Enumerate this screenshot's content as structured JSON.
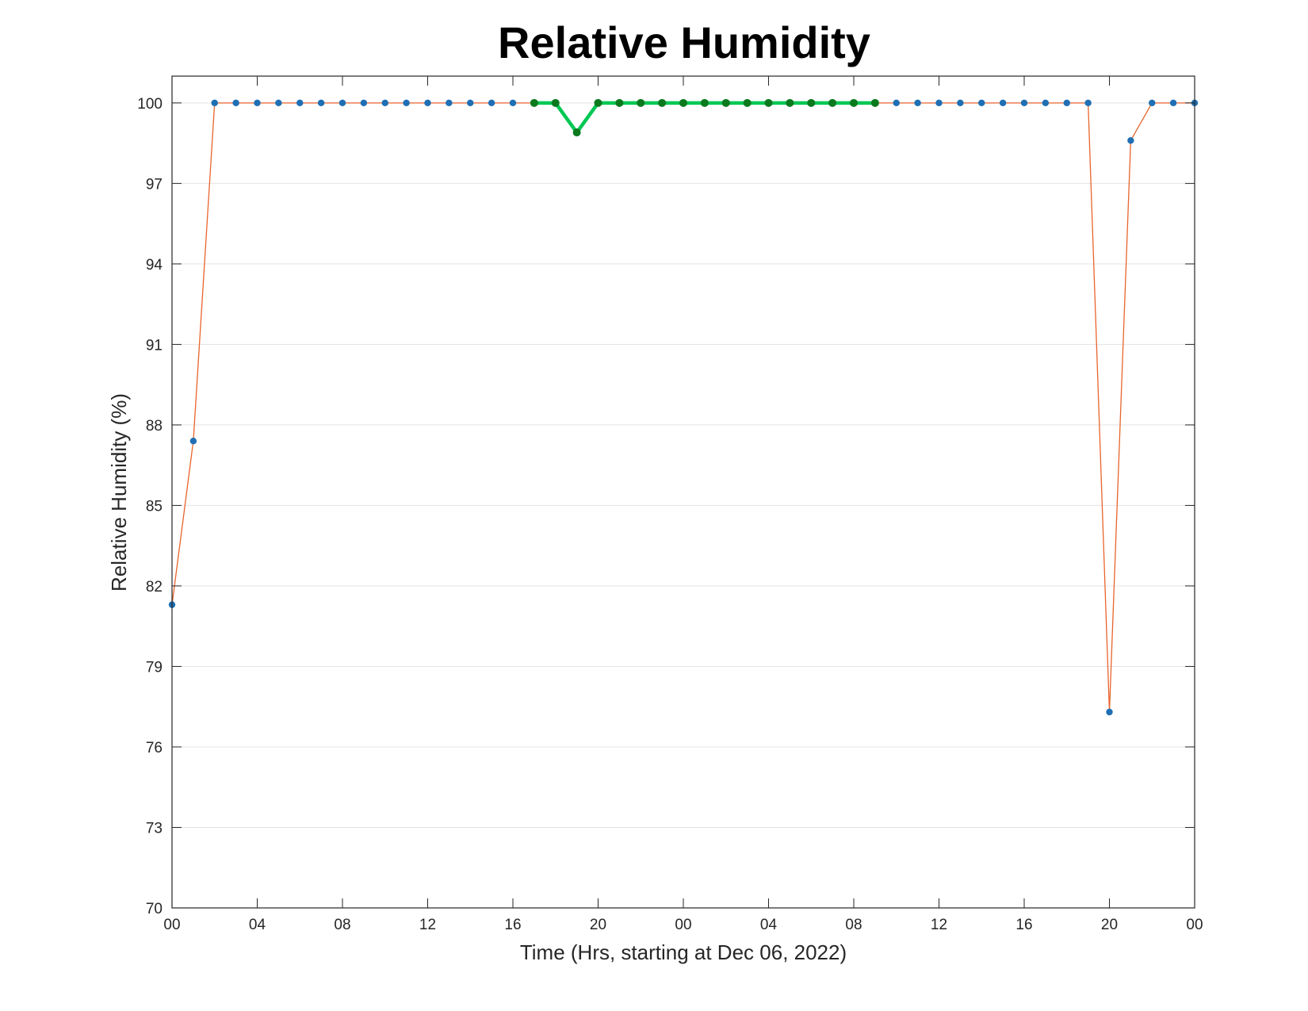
{
  "chart_data": {
    "type": "line",
    "title": "Relative Humidity",
    "xlabel": "Time (Hrs, starting at Dec 06, 2022)",
    "ylabel": "Relative Humidity (%)",
    "ylim": [
      70,
      101
    ],
    "xlim": [
      0,
      48
    ],
    "grid": "horizontal",
    "x_ticks": [
      {
        "hour": 0,
        "label": "00"
      },
      {
        "hour": 4,
        "label": "04"
      },
      {
        "hour": 8,
        "label": "08"
      },
      {
        "hour": 12,
        "label": "12"
      },
      {
        "hour": 16,
        "label": "16"
      },
      {
        "hour": 20,
        "label": "20"
      },
      {
        "hour": 24,
        "label": "00"
      },
      {
        "hour": 28,
        "label": "04"
      },
      {
        "hour": 32,
        "label": "08"
      },
      {
        "hour": 36,
        "label": "12"
      },
      {
        "hour": 40,
        "label": "16"
      },
      {
        "hour": 44,
        "label": "20"
      },
      {
        "hour": 48,
        "label": "00"
      }
    ],
    "y_ticks": [
      70,
      73,
      76,
      79,
      82,
      85,
      88,
      91,
      94,
      97,
      100
    ],
    "series": [
      {
        "color_line": "#e8642c",
        "color_marker": "#1f6fb4",
        "x": [
          0,
          1,
          2,
          3,
          4,
          5,
          6,
          7,
          8,
          9,
          10,
          11,
          12,
          13,
          14,
          15,
          16,
          17,
          18,
          19,
          20,
          21,
          22,
          23,
          24,
          25,
          26,
          27,
          28,
          29,
          30,
          31,
          32,
          33,
          34,
          35,
          36,
          37,
          38,
          39,
          40,
          41,
          42,
          43,
          44,
          45,
          46,
          47,
          48
        ],
        "y": [
          81.3,
          87.4,
          100,
          100,
          100,
          100,
          100,
          100,
          100,
          100,
          100,
          100,
          100,
          100,
          100,
          100,
          100,
          100,
          100,
          98.9,
          100,
          100,
          100,
          100,
          100,
          100,
          100,
          100,
          100,
          100,
          100,
          100,
          100,
          100,
          100,
          100,
          100,
          100,
          100,
          100,
          100,
          100,
          100,
          100,
          77.3,
          98.6,
          100,
          100,
          100
        ]
      },
      {
        "color_line": "#00c853",
        "color_marker": "#0b7a1e",
        "x": [
          17,
          18,
          19,
          20,
          21,
          22,
          23,
          24,
          25,
          26,
          27,
          28,
          29,
          30,
          31,
          32,
          33
        ],
        "y": [
          100,
          100,
          98.9,
          100,
          100,
          100,
          100,
          100,
          100,
          100,
          100,
          100,
          100,
          100,
          100,
          100,
          100
        ]
      }
    ]
  }
}
